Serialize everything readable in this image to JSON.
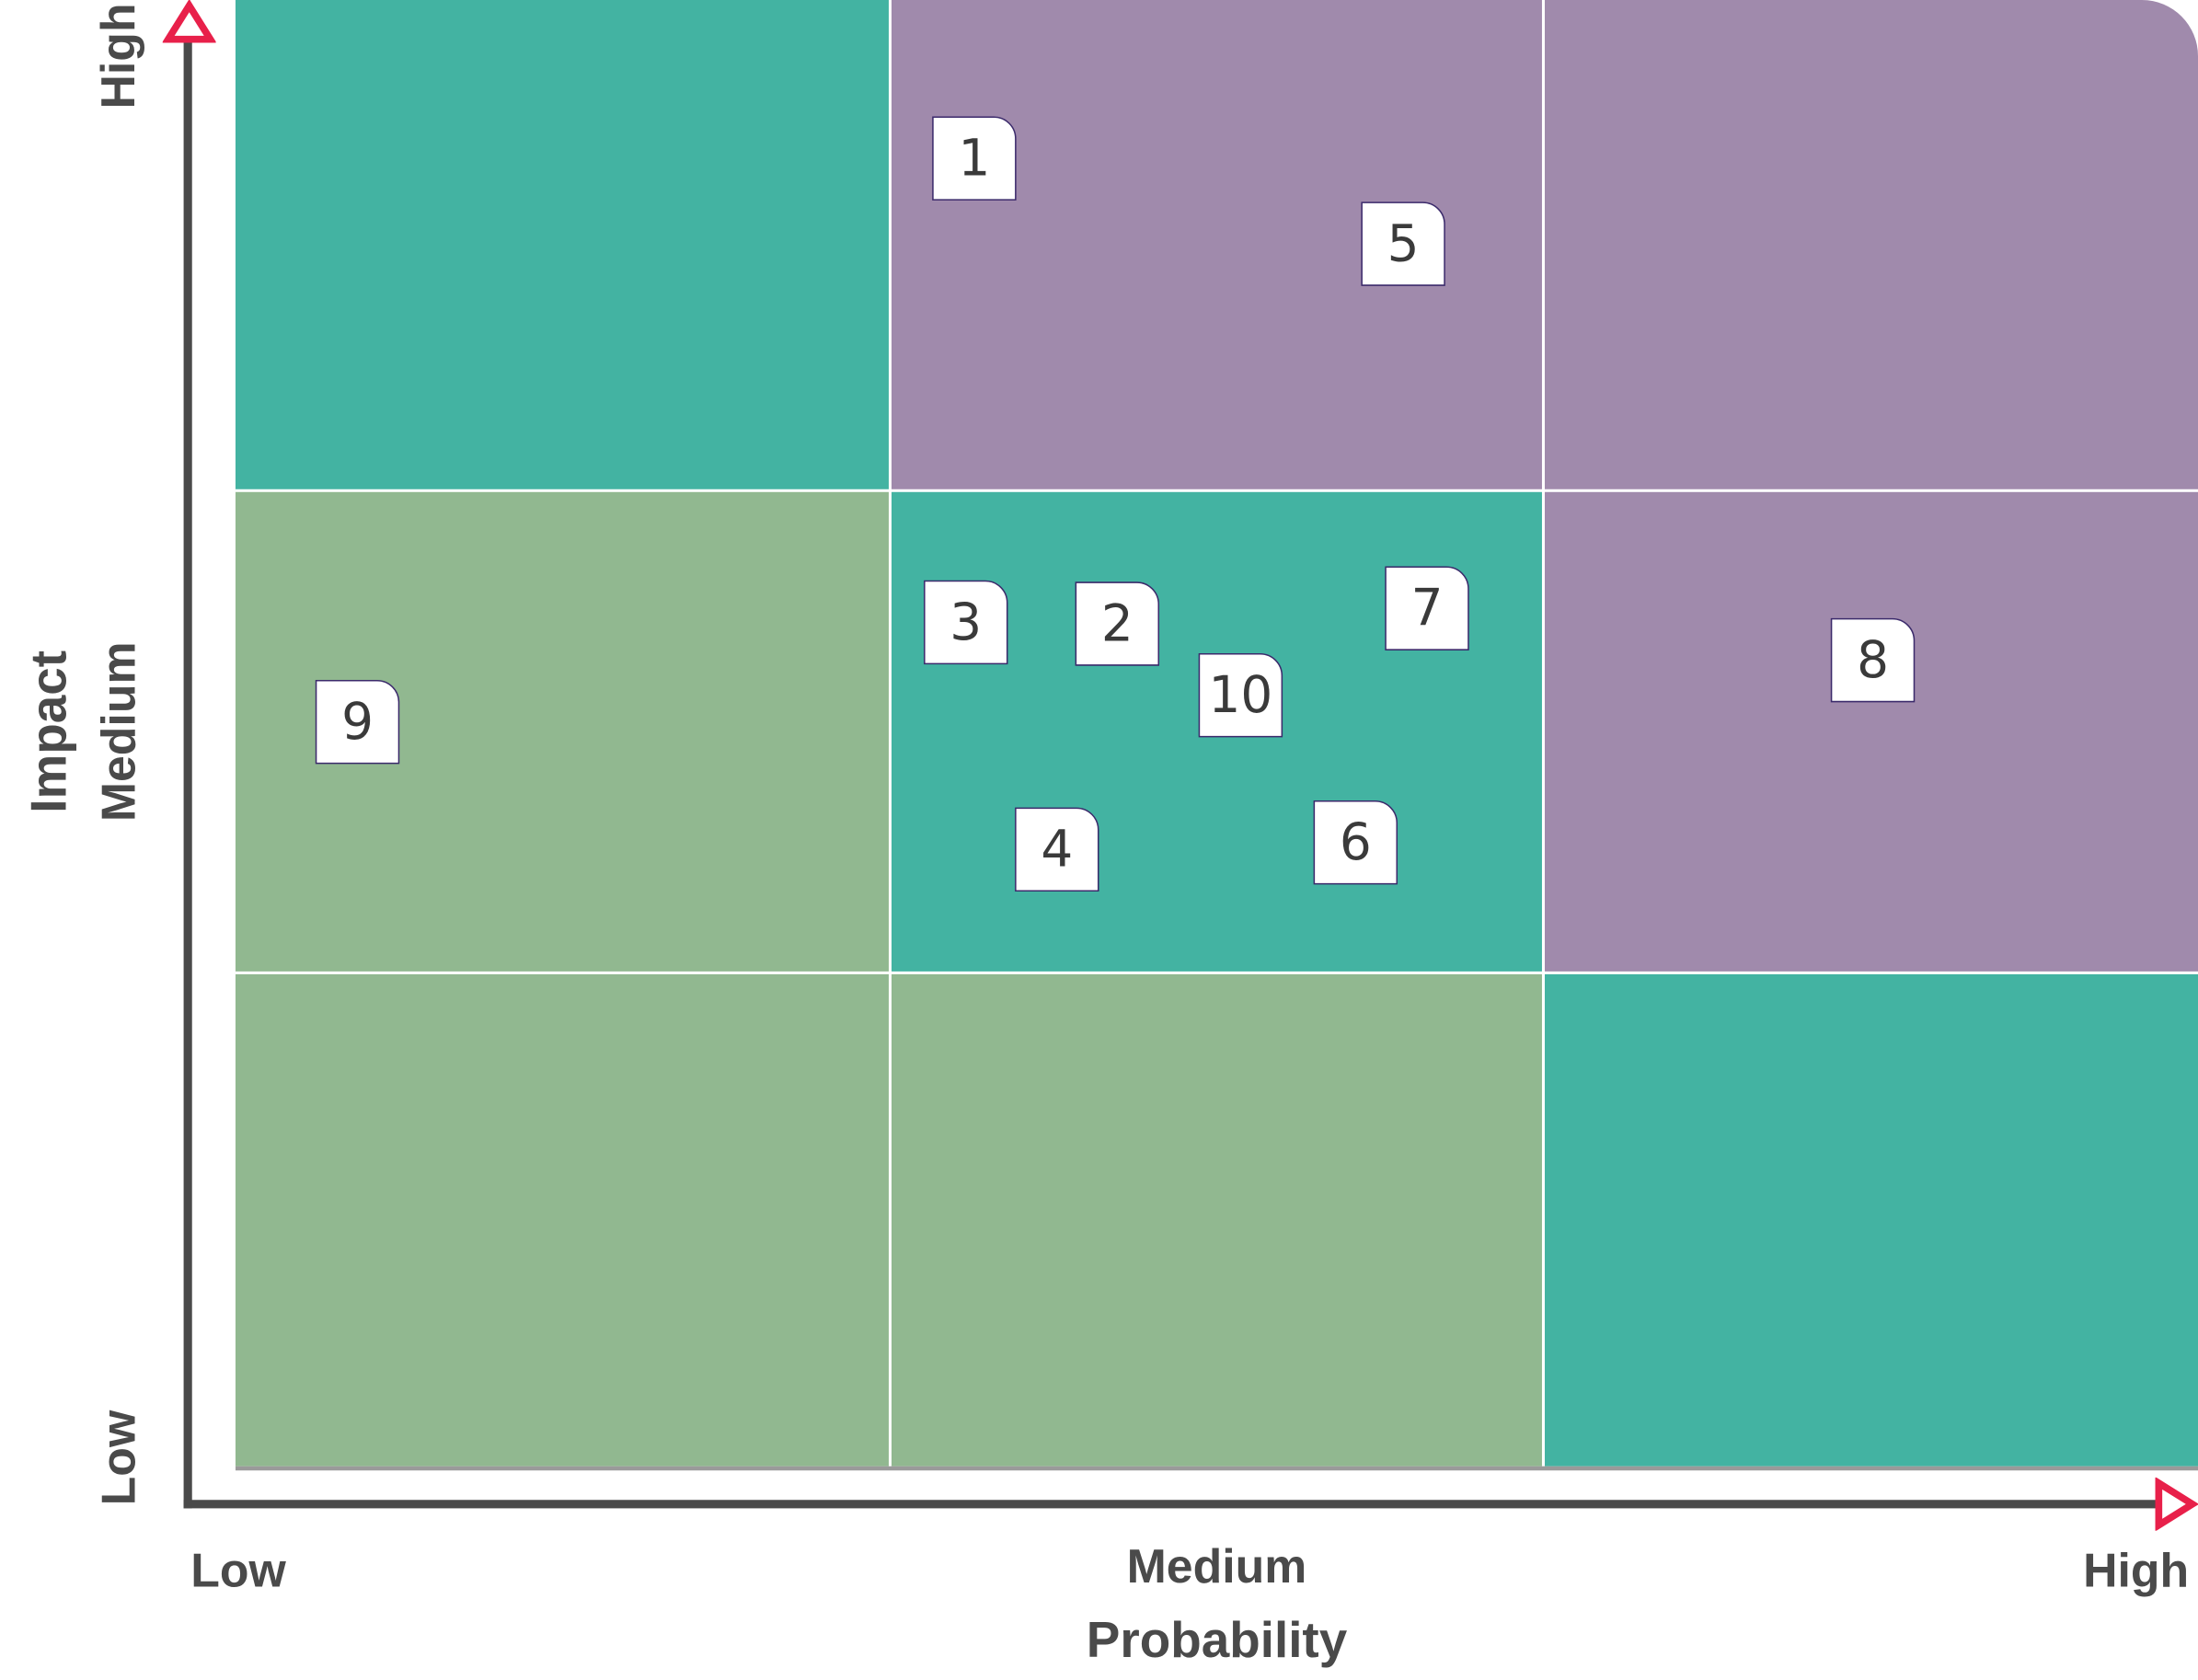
{
  "colors": {
    "teal": "#43b3a2",
    "purple": "#a08aac",
    "green": "#91b890",
    "axis": "#4a4a4a",
    "arrow": "#e8204a"
  },
  "axes": {
    "x_title": "Probability",
    "x_low": "Low",
    "x_medium": "Medium",
    "x_high": "High",
    "y_title": "Impact",
    "y_low": "Low",
    "y_medium": "Medium",
    "y_high": "High"
  },
  "matrix": {
    "rows": [
      [
        "teal",
        "purple",
        "purple"
      ],
      [
        "green",
        "teal",
        "purple"
      ],
      [
        "green",
        "green",
        "teal"
      ]
    ]
  },
  "risks": [
    {
      "label": "1",
      "probability": "Medium",
      "impact": "High"
    },
    {
      "label": "5",
      "probability": "Medium",
      "impact": "High"
    },
    {
      "label": "3",
      "probability": "Medium",
      "impact": "Medium"
    },
    {
      "label": "2",
      "probability": "Medium",
      "impact": "Medium"
    },
    {
      "label": "7",
      "probability": "Medium",
      "impact": "Medium"
    },
    {
      "label": "10",
      "probability": "Medium",
      "impact": "Medium"
    },
    {
      "label": "4",
      "probability": "Medium",
      "impact": "Medium"
    },
    {
      "label": "6",
      "probability": "Medium",
      "impact": "Medium"
    },
    {
      "label": "8",
      "probability": "High",
      "impact": "Medium"
    },
    {
      "label": "9",
      "probability": "Low",
      "impact": "Medium"
    }
  ]
}
